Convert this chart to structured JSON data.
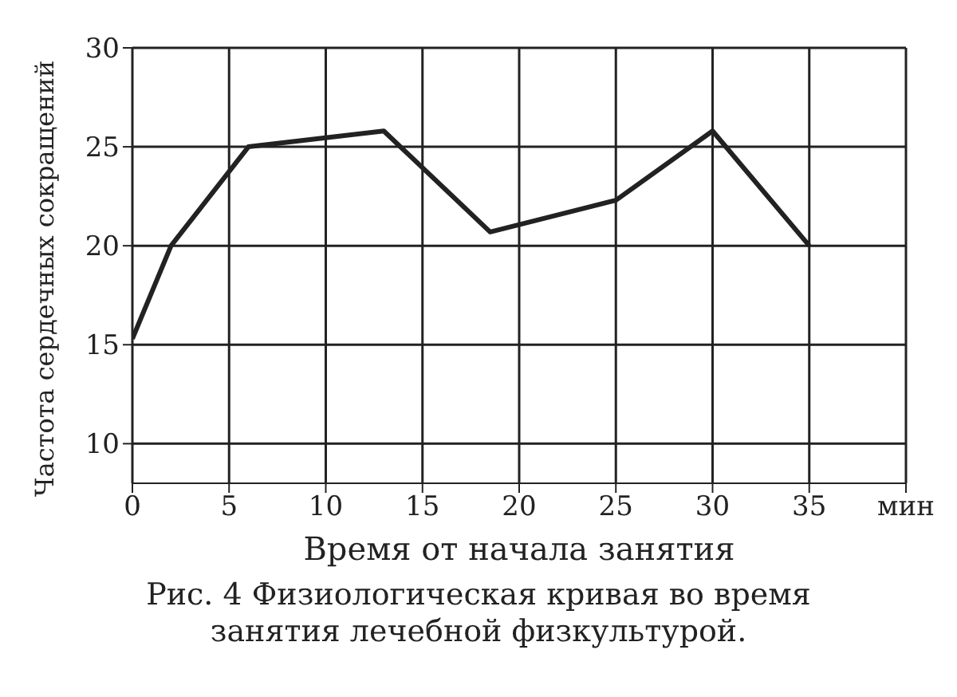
{
  "chart_data": {
    "type": "line",
    "title": "Рис. 4 Физиологическая кривая во время занятия лечебной физкультурой.",
    "xlabel": "Время от начала занятия",
    "ylabel": "Частота сердечных сокращений",
    "x": [
      0,
      2,
      6,
      13,
      18.5,
      25,
      30,
      35
    ],
    "series": [
      {
        "color": "#222222",
        "values": [
          15.3,
          20,
          25,
          25.8,
          20.7,
          22.3,
          25.8,
          20
        ]
      }
    ],
    "xlim": [
      0,
      40
    ],
    "xticks": [
      0,
      5,
      10,
      15,
      20,
      25,
      30,
      35,
      {
        "value": 40,
        "label": "мин"
      }
    ],
    "ylim": [
      8,
      30
    ],
    "yticks": [
      10,
      15,
      20,
      25,
      30
    ],
    "grid": true,
    "marker": "none",
    "line_style": "solid",
    "legend": false
  }
}
